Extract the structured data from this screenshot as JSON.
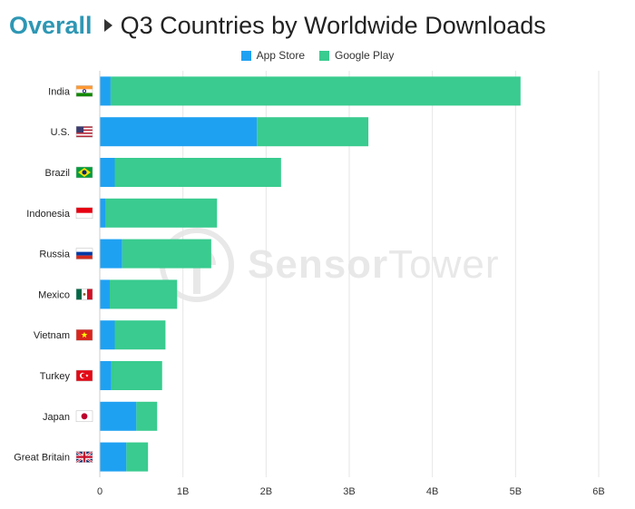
{
  "header": {
    "breadcrumb": "Overall",
    "title": "Q3 Countries by Worldwide Downloads"
  },
  "watermark": {
    "brand_bold": "Sensor",
    "brand_light": "Tower"
  },
  "colors": {
    "app_store": "#1fa1f2",
    "google_play": "#39cb8f",
    "grid": "#e6e6e6"
  },
  "chart_data": {
    "type": "bar",
    "orientation": "horizontal",
    "stacked": true,
    "title": "Q3 Countries by Worldwide Downloads",
    "categories": [
      "India",
      "U.S.",
      "Brazil",
      "Indonesia",
      "Russia",
      "Mexico",
      "Vietnam",
      "Turkey",
      "Japan",
      "Great Britain"
    ],
    "category_icons": [
      "flag-india-icon",
      "flag-us-icon",
      "flag-brazil-icon",
      "flag-indonesia-icon",
      "flag-russia-icon",
      "flag-mexico-icon",
      "flag-vietnam-icon",
      "flag-turkey-icon",
      "flag-japan-icon",
      "flag-great-britain-icon"
    ],
    "series": [
      {
        "name": "App Store",
        "color": "#1fa1f2",
        "values": [
          0.13,
          1.89,
          0.18,
          0.07,
          0.27,
          0.12,
          0.18,
          0.14,
          0.44,
          0.32
        ]
      },
      {
        "name": "Google Play",
        "color": "#39cb8f",
        "values": [
          4.93,
          1.34,
          2.0,
          1.34,
          1.07,
          0.81,
          0.61,
          0.61,
          0.25,
          0.26
        ]
      }
    ],
    "x_ticks": [
      "0",
      "1B",
      "2B",
      "3B",
      "4B",
      "5B",
      "6B"
    ],
    "xlim": [
      0,
      6
    ],
    "legend_position": "top-center",
    "grid": "vertical"
  }
}
